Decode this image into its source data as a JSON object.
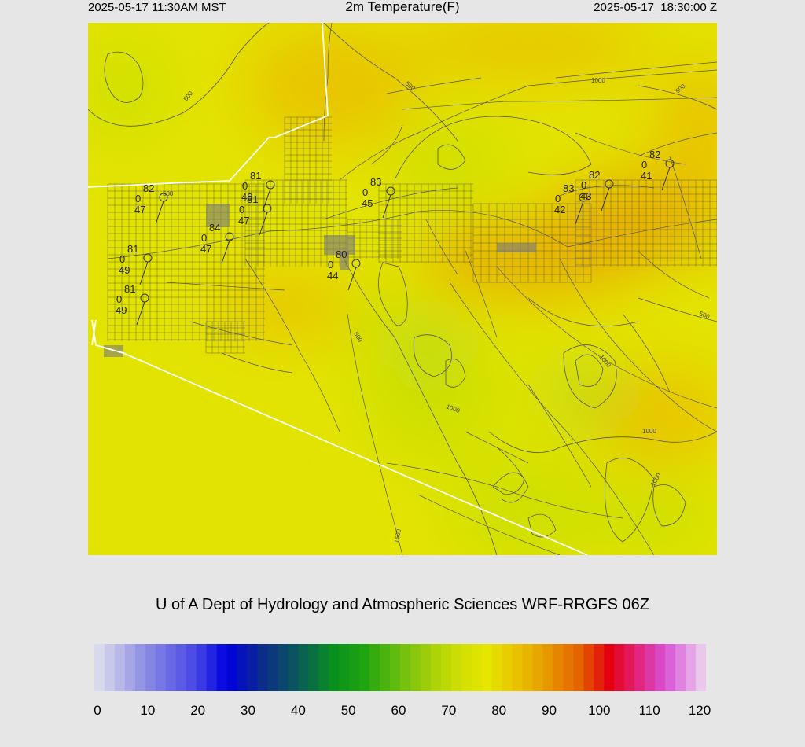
{
  "header": {
    "local_time": "2025-05-17 11:30AM MST",
    "title": "2m Temperature(F)",
    "utc_time": "2025-05-17_18:30:00 Z"
  },
  "footer": {
    "credit": "U of A Dept of Hydrology and Atmospheric Sciences WRF-RRGFS 06Z"
  },
  "colorbar": {
    "min": 0,
    "max": 120,
    "ticks": [
      "0",
      "10",
      "20",
      "30",
      "40",
      "50",
      "60",
      "70",
      "80",
      "90",
      "100",
      "110",
      "120"
    ],
    "stops": [
      {
        "value": 0,
        "color": "#e2e2ee"
      },
      {
        "value": 10,
        "color": "#8c8ce4"
      },
      {
        "value": 20,
        "color": "#4646e6"
      },
      {
        "value": 26,
        "color": "#0000e0"
      },
      {
        "value": 33,
        "color": "#0c2c8a"
      },
      {
        "value": 40,
        "color": "#0a5a5a"
      },
      {
        "value": 47,
        "color": "#08901c"
      },
      {
        "value": 53,
        "color": "#20a410"
      },
      {
        "value": 60,
        "color": "#6cbe0e"
      },
      {
        "value": 66,
        "color": "#a6d00a"
      },
      {
        "value": 72,
        "color": "#d2e004"
      },
      {
        "value": 77,
        "color": "#e6e600"
      },
      {
        "value": 82,
        "color": "#e8c800"
      },
      {
        "value": 88,
        "color": "#e8a000"
      },
      {
        "value": 95,
        "color": "#e46400"
      },
      {
        "value": 101,
        "color": "#e40010"
      },
      {
        "value": 106,
        "color": "#e21e6e"
      },
      {
        "value": 112,
        "color": "#d850d8"
      },
      {
        "value": 120,
        "color": "#eed8ee"
      }
    ]
  },
  "map": {
    "field_colors": {
      "base": "#e3e300",
      "warm": "#e8c400",
      "hot": "#e6ad00",
      "cool": "#cfe000",
      "coolest": "#bcd81a"
    },
    "line_color": "#555555",
    "border_color": "#ffffff",
    "elevation_labels": [
      "500",
      "500",
      "1000",
      "500",
      "500",
      "1000",
      "1000",
      "1000",
      "1000",
      "1500",
      "500",
      "500"
    ],
    "stations": [
      {
        "temp": "82",
        "wind": "0",
        "dew": "47"
      },
      {
        "temp": "81",
        "wind": "0",
        "dew": "48"
      },
      {
        "temp": "81",
        "wind": "0",
        "dew": "47"
      },
      {
        "temp": "84",
        "wind": "0",
        "dew": "47"
      },
      {
        "temp": "81",
        "wind": "0",
        "dew": "49"
      },
      {
        "temp": "81",
        "wind": "0",
        "dew": "49"
      },
      {
        "temp": "80",
        "wind": "0",
        "dew": "44"
      },
      {
        "temp": "83",
        "wind": "0",
        "dew": "45"
      },
      {
        "temp": "83",
        "wind": "0",
        "dew": "42"
      },
      {
        "temp": "82",
        "wind": "0",
        "dew": "43"
      },
      {
        "temp": "82",
        "wind": "0",
        "dew": "41"
      }
    ]
  }
}
